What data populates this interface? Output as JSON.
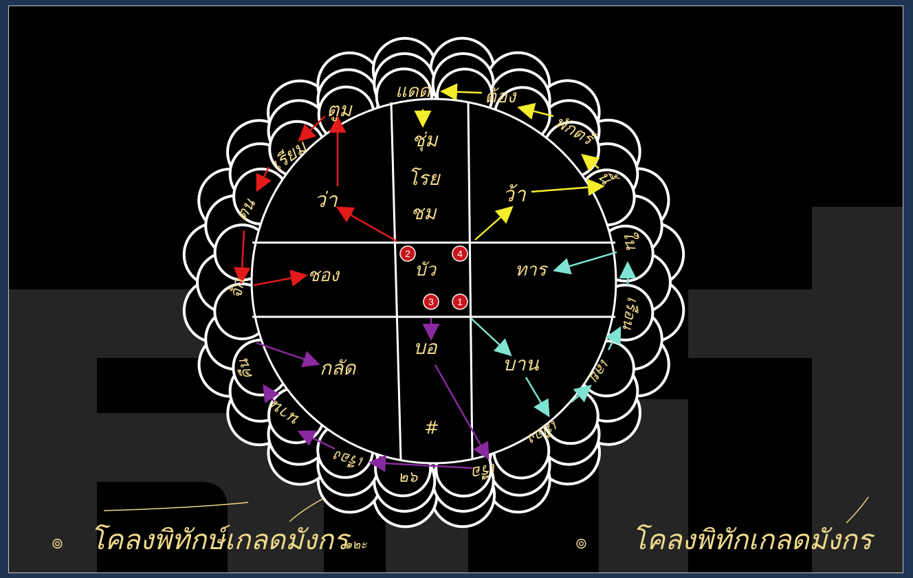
{
  "colors": {
    "background": "#000000",
    "frame": "#1e3554",
    "ink": "#ffffff",
    "text": "#efd98a",
    "watermark": "#e4e4e4",
    "red": "#e21a1a",
    "yellow": "#f5ee2a",
    "purple": "#7d1a8e",
    "cyan": "#7fe3d2",
    "marker": "#c8141c"
  },
  "outer_words": [
    {
      "id": "w-daet",
      "text": "แดด"
    },
    {
      "id": "w-tong",
      "text": "ต้อง"
    },
    {
      "id": "w-phak",
      "text": "พักตร์"
    },
    {
      "id": "w-ni",
      "text": "นี้"
    },
    {
      "id": "w-nai",
      "text": "ใน"
    },
    {
      "id": "w-ruen",
      "text": "เรือน"
    },
    {
      "id": "w-loei",
      "text": "เลย"
    },
    {
      "id": "w-mueang",
      "text": "เมือง"
    },
    {
      "id": "w-ruea",
      "text": "เรือ"
    },
    {
      "id": "w-ruang",
      "text": "เรือง"
    },
    {
      "id": "w-num",
      "text": "๒๖"
    },
    {
      "id": "w-nan",
      "text": "นาน"
    },
    {
      "id": "w-khuen",
      "text": "คืน"
    },
    {
      "id": "w-chak",
      "text": "จัก"
    },
    {
      "id": "w-tonl",
      "text": "ตน"
    },
    {
      "id": "w-riam",
      "text": "เรียม"
    },
    {
      "id": "w-tum",
      "text": "ตูม"
    }
  ],
  "inner_words": [
    {
      "id": "i-chum",
      "text": "ชุ่ม"
    },
    {
      "id": "i-roi",
      "text": "โรย"
    },
    {
      "id": "i-chom",
      "text": "ชม"
    },
    {
      "id": "i-wa1",
      "text": "ว่า"
    },
    {
      "id": "i-wa2",
      "text": "ว้า"
    },
    {
      "id": "i-chong",
      "text": "ชอง"
    },
    {
      "id": "i-bua",
      "text": "บัว"
    },
    {
      "id": "i-than",
      "text": "ทาร"
    },
    {
      "id": "i-klat",
      "text": "กลัด"
    },
    {
      "id": "i-bo",
      "text": "บอ"
    },
    {
      "id": "i-ban",
      "text": "บาน"
    },
    {
      "id": "i-hash",
      "text": "#"
    }
  ],
  "markers": [
    "2",
    "4",
    "3",
    "1"
  ],
  "captions": {
    "left": "โคลงพิทักษ์เกลดมังกร",
    "left_suffix": "๑๒ะ",
    "right": "โคลงพิทักเกลดมังกร",
    "bullet": "๏"
  }
}
